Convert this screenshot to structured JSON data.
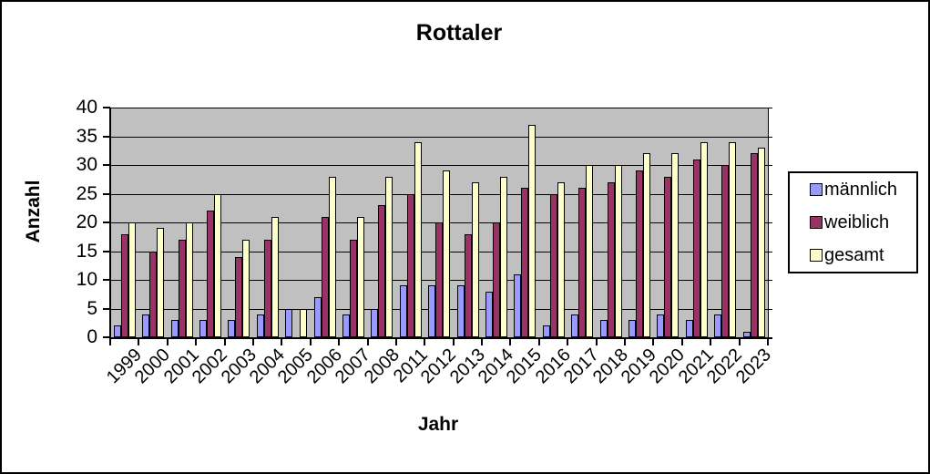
{
  "frame": {
    "background": "#FFFFFF",
    "border_color": "#000000"
  },
  "chart_data": {
    "type": "bar",
    "title": "Rottaler",
    "xlabel": "Jahr",
    "ylabel": "Anzahl",
    "ylim": [
      0,
      40
    ],
    "yticks": [
      0,
      5,
      10,
      15,
      20,
      25,
      30,
      35,
      40
    ],
    "grid": true,
    "plot_background": "#C0C0C0",
    "gridline_color": "#000000",
    "legend_position": "right",
    "categories": [
      "1999",
      "2000",
      "2001",
      "2002",
      "2003",
      "2004",
      "2005",
      "2006",
      "2007",
      "2008",
      "2011",
      "2012",
      "2013",
      "2014",
      "2015",
      "2016",
      "2017",
      "2018",
      "2019",
      "2020",
      "2021",
      "2022",
      "2023"
    ],
    "series": [
      {
        "name": "männlich",
        "key": "maennlich",
        "color": "#9999FF",
        "values": [
          2,
          4,
          3,
          3,
          3,
          4,
          5,
          7,
          4,
          5,
          9,
          9,
          9,
          8,
          11,
          2,
          4,
          3,
          3,
          4,
          3,
          4,
          1
        ]
      },
      {
        "name": "weiblich",
        "key": "weiblich",
        "color": "#993366",
        "values": [
          18,
          15,
          17,
          22,
          14,
          17,
          0,
          21,
          17,
          23,
          25,
          20,
          18,
          20,
          26,
          25,
          26,
          27,
          29,
          28,
          31,
          30,
          32
        ]
      },
      {
        "name": "gesamt",
        "key": "gesamt",
        "color": "#FFFFCC",
        "values": [
          20,
          19,
          20,
          25,
          17,
          21,
          5,
          28,
          21,
          28,
          34,
          29,
          27,
          28,
          37,
          27,
          30,
          30,
          32,
          32,
          34,
          34,
          33
        ]
      }
    ]
  }
}
